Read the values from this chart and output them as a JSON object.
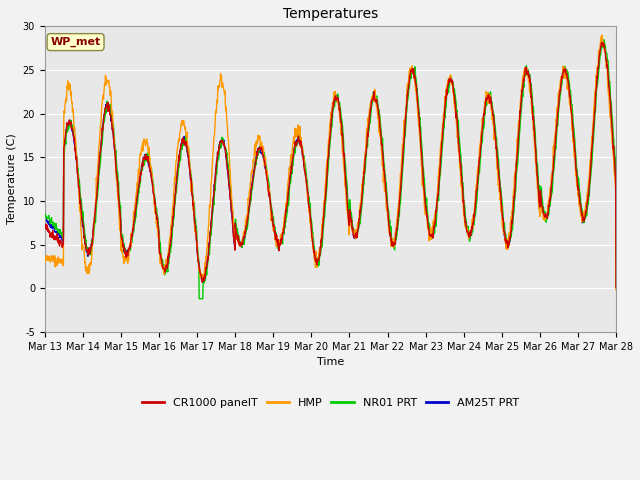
{
  "title": "Temperatures",
  "xlabel": "Time",
  "ylabel": "Temperature (C)",
  "ylim": [
    -5,
    30
  ],
  "yticks": [
    -5,
    0,
    5,
    10,
    15,
    20,
    25,
    30
  ],
  "x_tick_labels": [
    "Mar 13",
    "Mar 14",
    "Mar 15",
    "Mar 16",
    "Mar 17",
    "Mar 18",
    "Mar 19",
    "Mar 20",
    "Mar 21",
    "Mar 22",
    "Mar 23",
    "Mar 24",
    "Mar 25",
    "Mar 26",
    "Mar 27",
    "Mar 28"
  ],
  "legend_labels": [
    "CR1000 panelT",
    "HMP",
    "NR01 PRT",
    "AM25T PRT"
  ],
  "legend_colors": [
    "#cc0000",
    "#ff9900",
    "#00cc00",
    "#0000cc"
  ],
  "wp_met_box_facecolor": "#ffffcc",
  "wp_met_box_edgecolor": "#888844",
  "wp_met_text_color": "#880000",
  "plot_bg_color": "#e8e8e8",
  "fig_bg_color": "#f2f2f2",
  "grid_color": "#ffffff",
  "title_fontsize": 10,
  "axis_label_fontsize": 8,
  "tick_fontsize": 7,
  "legend_fontsize": 8,
  "line_width": 1.0,
  "n_days": 15,
  "pts_per_day": 96,
  "base_min": [
    4,
    4,
    4,
    2,
    1,
    5,
    5,
    3,
    6,
    5,
    6,
    6,
    5,
    8,
    8
  ],
  "base_max": [
    19,
    21,
    15,
    17,
    17,
    16,
    17,
    22,
    22,
    25,
    24,
    22,
    25,
    25,
    28
  ],
  "hmp_min_boost": [
    3,
    2,
    1,
    0,
    0,
    0,
    0,
    0,
    0,
    0,
    0,
    0,
    0,
    0,
    0
  ],
  "hmp_max_boost": [
    4,
    3,
    2,
    2,
    7,
    1,
    1,
    0,
    0,
    0,
    0,
    0,
    0,
    0,
    0
  ]
}
